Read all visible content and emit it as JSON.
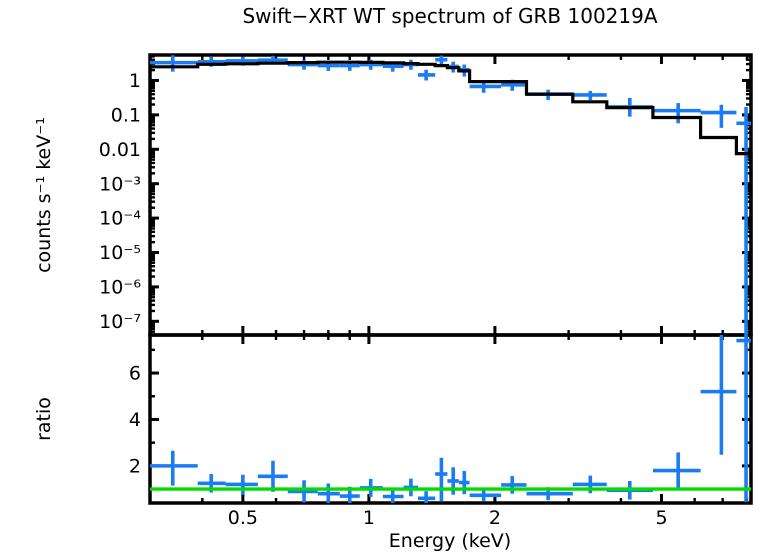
{
  "title": "Swift−XRT WT spectrum of GRB 100219A",
  "colors": {
    "background": "#ffffff",
    "axis": "#000000",
    "data_points": "#1b7cf2",
    "model_line": "#000000",
    "reference_line": "#00dd00"
  },
  "chart_data": [
    {
      "id": "spectrum-panel",
      "type": "scatter",
      "title": "Swift−XRT WT spectrum of GRB 100219A",
      "xlabel": "Energy (keV)",
      "ylabel": "counts s⁻¹ keV⁻¹",
      "xscale": "log",
      "yscale": "log",
      "xlim": [
        0.3,
        8.18
      ],
      "ylim": [
        4e-08,
        5.5
      ],
      "grid": false,
      "legend": "none",
      "xticks": [
        {
          "v": 0.5,
          "label": "0.5"
        },
        {
          "v": 1,
          "label": "1"
        },
        {
          "v": 2,
          "label": "2"
        },
        {
          "v": 5,
          "label": "5"
        }
      ],
      "xminor": [
        0.4,
        0.6,
        0.7,
        0.8,
        0.9,
        3,
        4,
        6,
        7,
        8
      ],
      "yticks": [
        {
          "v": 1,
          "label": "1"
        },
        {
          "v": 0.1,
          "label": "0.1"
        },
        {
          "v": 0.01,
          "label": "0.01"
        },
        {
          "v": 0.001,
          "label": "10⁻³"
        },
        {
          "v": 0.0001,
          "label": "10⁻⁴"
        },
        {
          "v": 1e-05,
          "label": "10⁻⁵"
        },
        {
          "v": 1e-06,
          "label": "10⁻⁶"
        },
        {
          "v": 1e-07,
          "label": "10⁻⁷"
        }
      ],
      "points": [
        {
          "e": 0.34,
          "e_lo": 0.3,
          "e_hi": 0.39,
          "v": 3.3,
          "v_lo": 1.8,
          "v_hi": 5.4
        },
        {
          "e": 0.42,
          "e_lo": 0.39,
          "e_hi": 0.455,
          "v": 3.5,
          "v_lo": 2.5,
          "v_hi": 4.9
        },
        {
          "e": 0.5,
          "e_lo": 0.455,
          "e_hi": 0.543,
          "v": 3.7,
          "v_lo": 2.7,
          "v_hi": 4.9
        },
        {
          "e": 0.59,
          "e_lo": 0.543,
          "e_hi": 0.64,
          "v": 3.9,
          "v_lo": 2.9,
          "v_hi": 5.2
        },
        {
          "e": 0.7,
          "e_lo": 0.64,
          "e_hi": 0.755,
          "v": 2.9,
          "v_lo": 2.05,
          "v_hi": 4.0
        },
        {
          "e": 0.8,
          "e_lo": 0.755,
          "e_hi": 0.852,
          "v": 2.7,
          "v_lo": 1.9,
          "v_hi": 3.5
        },
        {
          "e": 0.9,
          "e_lo": 0.852,
          "e_hi": 0.951,
          "v": 2.7,
          "v_lo": 1.9,
          "v_hi": 3.5
        },
        {
          "e": 1.01,
          "e_lo": 0.951,
          "e_hi": 1.08,
          "v": 2.9,
          "v_lo": 2.05,
          "v_hi": 4.0
        },
        {
          "e": 1.14,
          "e_lo": 1.08,
          "e_hi": 1.21,
          "v": 2.6,
          "v_lo": 1.8,
          "v_hi": 3.5
        },
        {
          "e": 1.26,
          "e_lo": 1.21,
          "e_hi": 1.31,
          "v": 2.9,
          "v_lo": 2.05,
          "v_hi": 4.0
        },
        {
          "e": 1.37,
          "e_lo": 1.31,
          "e_hi": 1.44,
          "v": 1.45,
          "v_lo": 1.0,
          "v_hi": 2.05
        },
        {
          "e": 1.49,
          "e_lo": 1.44,
          "e_hi": 1.54,
          "v": 4.0,
          "v_lo": 2.7,
          "v_hi": 5.3
        },
        {
          "e": 1.59,
          "e_lo": 1.54,
          "e_hi": 1.64,
          "v": 2.55,
          "v_lo": 1.7,
          "v_hi": 3.5
        },
        {
          "e": 1.69,
          "e_lo": 1.64,
          "e_hi": 1.74,
          "v": 2.05,
          "v_lo": 1.3,
          "v_hi": 2.9
        },
        {
          "e": 1.88,
          "e_lo": 1.74,
          "e_hi": 2.07,
          "v": 0.67,
          "v_lo": 0.44,
          "v_hi": 0.92
        },
        {
          "e": 2.2,
          "e_lo": 2.07,
          "e_hi": 2.38,
          "v": 0.75,
          "v_lo": 0.5,
          "v_hi": 1.05
        },
        {
          "e": 2.68,
          "e_lo": 2.38,
          "e_hi": 3.07,
          "v": 0.4,
          "v_lo": 0.27,
          "v_hi": 0.54
        },
        {
          "e": 3.38,
          "e_lo": 3.07,
          "e_hi": 3.7,
          "v": 0.38,
          "v_lo": 0.27,
          "v_hi": 0.5
        },
        {
          "e": 4.2,
          "e_lo": 3.7,
          "e_hi": 4.77,
          "v": 0.17,
          "v_lo": 0.089,
          "v_hi": 0.31
        },
        {
          "e": 5.48,
          "e_lo": 4.77,
          "e_hi": 6.2,
          "v": 0.133,
          "v_lo": 0.057,
          "v_hi": 0.22
        },
        {
          "e": 6.95,
          "e_lo": 6.2,
          "e_hi": 7.55,
          "v": 0.117,
          "v_lo": 0.042,
          "v_hi": 0.196
        },
        {
          "e": 7.96,
          "e_lo": 7.55,
          "e_hi": 8.18,
          "v": 0.057,
          "v_lo": 4e-08,
          "v_hi": 0.17
        }
      ],
      "model_steps": [
        {
          "e_lo": 0.3,
          "e_hi": 0.39,
          "v": 2.5
        },
        {
          "e_lo": 0.39,
          "e_hi": 0.455,
          "v": 2.95
        },
        {
          "e_lo": 0.455,
          "e_hi": 0.543,
          "v": 3.05
        },
        {
          "e_lo": 0.543,
          "e_hi": 0.64,
          "v": 3.18
        },
        {
          "e_lo": 0.64,
          "e_hi": 0.755,
          "v": 3.3
        },
        {
          "e_lo": 0.755,
          "e_hi": 0.951,
          "v": 3.4
        },
        {
          "e_lo": 0.951,
          "e_hi": 1.08,
          "v": 3.35
        },
        {
          "e_lo": 1.08,
          "e_hi": 1.21,
          "v": 3.25
        },
        {
          "e_lo": 1.21,
          "e_hi": 1.31,
          "v": 3.1
        },
        {
          "e_lo": 1.31,
          "e_hi": 1.44,
          "v": 2.95
        },
        {
          "e_lo": 1.44,
          "e_hi": 1.54,
          "v": 2.7
        },
        {
          "e_lo": 1.54,
          "e_hi": 1.64,
          "v": 2.35
        },
        {
          "e_lo": 1.64,
          "e_hi": 1.74,
          "v": 1.9
        },
        {
          "e_lo": 1.74,
          "e_hi": 2.38,
          "v": 0.93
        },
        {
          "e_lo": 2.38,
          "e_hi": 3.07,
          "v": 0.4
        },
        {
          "e_lo": 3.07,
          "e_hi": 3.7,
          "v": 0.24
        },
        {
          "e_lo": 3.7,
          "e_hi": 4.77,
          "v": 0.163
        },
        {
          "e_lo": 4.77,
          "e_hi": 6.2,
          "v": 0.084
        },
        {
          "e_lo": 6.2,
          "e_hi": 7.55,
          "v": 0.022
        },
        {
          "e_lo": 7.55,
          "e_hi": 8.18,
          "v": 0.0075
        }
      ],
      "model_end_drop": true
    },
    {
      "id": "ratio-panel",
      "type": "scatter",
      "xlabel": "Energy (keV)",
      "ylabel": "ratio",
      "xscale": "log",
      "yscale": "linear",
      "xlim": [
        0.3,
        8.18
      ],
      "ylim": [
        0.4,
        7.64
      ],
      "grid": false,
      "legend": "none",
      "yticks": [
        {
          "v": 2,
          "label": "2"
        },
        {
          "v": 4,
          "label": "4"
        },
        {
          "v": 6,
          "label": "6"
        }
      ],
      "yminor": [
        1,
        3,
        5,
        7
      ],
      "reference_line_y": 1,
      "points": [
        {
          "e": 0.34,
          "e_lo": 0.3,
          "e_hi": 0.39,
          "r": 2.0,
          "r_lo": 1.15,
          "r_hi": 2.65
        },
        {
          "e": 0.42,
          "e_lo": 0.39,
          "e_hi": 0.455,
          "r": 1.25,
          "r_lo": 0.85,
          "r_hi": 1.65
        },
        {
          "e": 0.5,
          "e_lo": 0.455,
          "e_hi": 0.543,
          "r": 1.2,
          "r_lo": 0.75,
          "r_hi": 1.62
        },
        {
          "e": 0.59,
          "e_lo": 0.543,
          "e_hi": 0.64,
          "r": 1.55,
          "r_lo": 0.88,
          "r_hi": 2.22
        },
        {
          "e": 0.7,
          "e_lo": 0.64,
          "e_hi": 0.755,
          "r": 0.9,
          "r_lo": 0.42,
          "r_hi": 1.38
        },
        {
          "e": 0.8,
          "e_lo": 0.755,
          "e_hi": 0.852,
          "r": 0.8,
          "r_lo": 0.36,
          "r_hi": 1.24
        },
        {
          "e": 0.9,
          "e_lo": 0.852,
          "e_hi": 0.951,
          "r": 0.7,
          "r_lo": 0.3,
          "r_hi": 1.1
        },
        {
          "e": 1.01,
          "e_lo": 0.951,
          "e_hi": 1.08,
          "r": 1.05,
          "r_lo": 0.66,
          "r_hi": 1.44
        },
        {
          "e": 1.14,
          "e_lo": 1.08,
          "e_hi": 1.21,
          "r": 0.68,
          "r_lo": 0.34,
          "r_hi": 1.02
        },
        {
          "e": 1.26,
          "e_lo": 1.21,
          "e_hi": 1.31,
          "r": 1.07,
          "r_lo": 0.69,
          "r_hi": 1.45
        },
        {
          "e": 1.37,
          "e_lo": 1.31,
          "e_hi": 1.44,
          "r": 0.6,
          "r_lo": 0.29,
          "r_hi": 0.91
        },
        {
          "e": 1.49,
          "e_lo": 1.44,
          "e_hi": 1.54,
          "r": 1.65,
          "r_lo": 0.46,
          "r_hi": 2.35
        },
        {
          "e": 1.59,
          "e_lo": 1.54,
          "e_hi": 1.64,
          "r": 1.35,
          "r_lo": 0.76,
          "r_hi": 1.94
        },
        {
          "e": 1.69,
          "e_lo": 1.64,
          "e_hi": 1.74,
          "r": 1.28,
          "r_lo": 0.78,
          "r_hi": 1.78
        },
        {
          "e": 1.88,
          "e_lo": 1.74,
          "e_hi": 2.07,
          "r": 0.73,
          "r_lo": 0.46,
          "r_hi": 1.0
        },
        {
          "e": 2.2,
          "e_lo": 2.07,
          "e_hi": 2.38,
          "r": 1.18,
          "r_lo": 0.8,
          "r_hi": 1.56
        },
        {
          "e": 2.68,
          "e_lo": 2.38,
          "e_hi": 3.07,
          "r": 0.8,
          "r_lo": 0.52,
          "r_hi": 1.08
        },
        {
          "e": 3.38,
          "e_lo": 3.07,
          "e_hi": 3.7,
          "r": 1.2,
          "r_lo": 0.82,
          "r_hi": 1.58
        },
        {
          "e": 4.2,
          "e_lo": 3.7,
          "e_hi": 4.77,
          "r": 0.95,
          "r_lo": 0.55,
          "r_hi": 1.35
        },
        {
          "e": 5.48,
          "e_lo": 4.77,
          "e_hi": 6.2,
          "r": 1.8,
          "r_lo": 1.02,
          "r_hi": 2.58
        },
        {
          "e": 6.95,
          "e_lo": 6.2,
          "e_hi": 7.55,
          "r": 5.2,
          "r_lo": 2.48,
          "r_hi": 7.64
        },
        {
          "e": 7.96,
          "e_lo": 7.55,
          "e_hi": 8.18,
          "r": 7.4,
          "r_lo": 0.45,
          "r_hi": 7.64
        }
      ]
    }
  ]
}
